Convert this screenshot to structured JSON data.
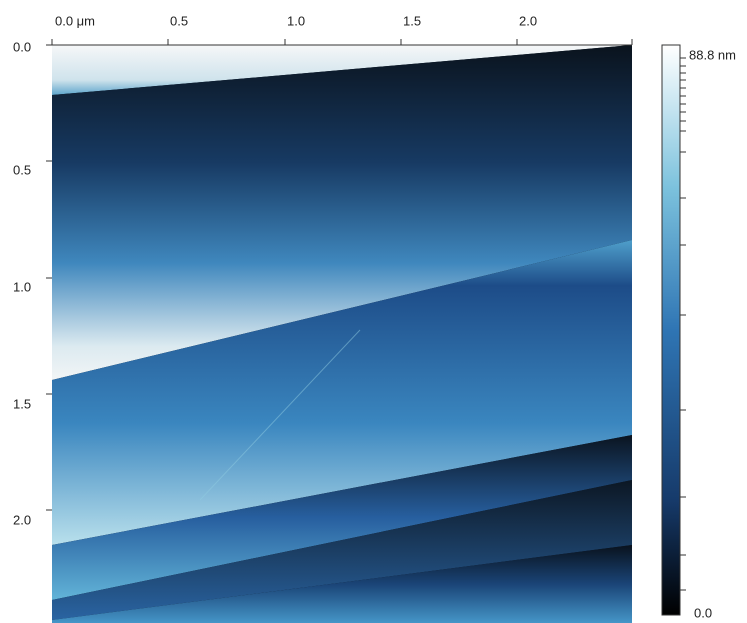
{
  "x_axis": {
    "ticks": [
      "0.0 μm",
      "0.5",
      "1.0",
      "1.5",
      "2.0"
    ]
  },
  "y_axis": {
    "ticks": [
      "0.0",
      "0.5",
      "1.0",
      "1.5",
      "2.0"
    ]
  },
  "colorbar": {
    "max": "88.8 nm",
    "min": "0.0"
  }
}
